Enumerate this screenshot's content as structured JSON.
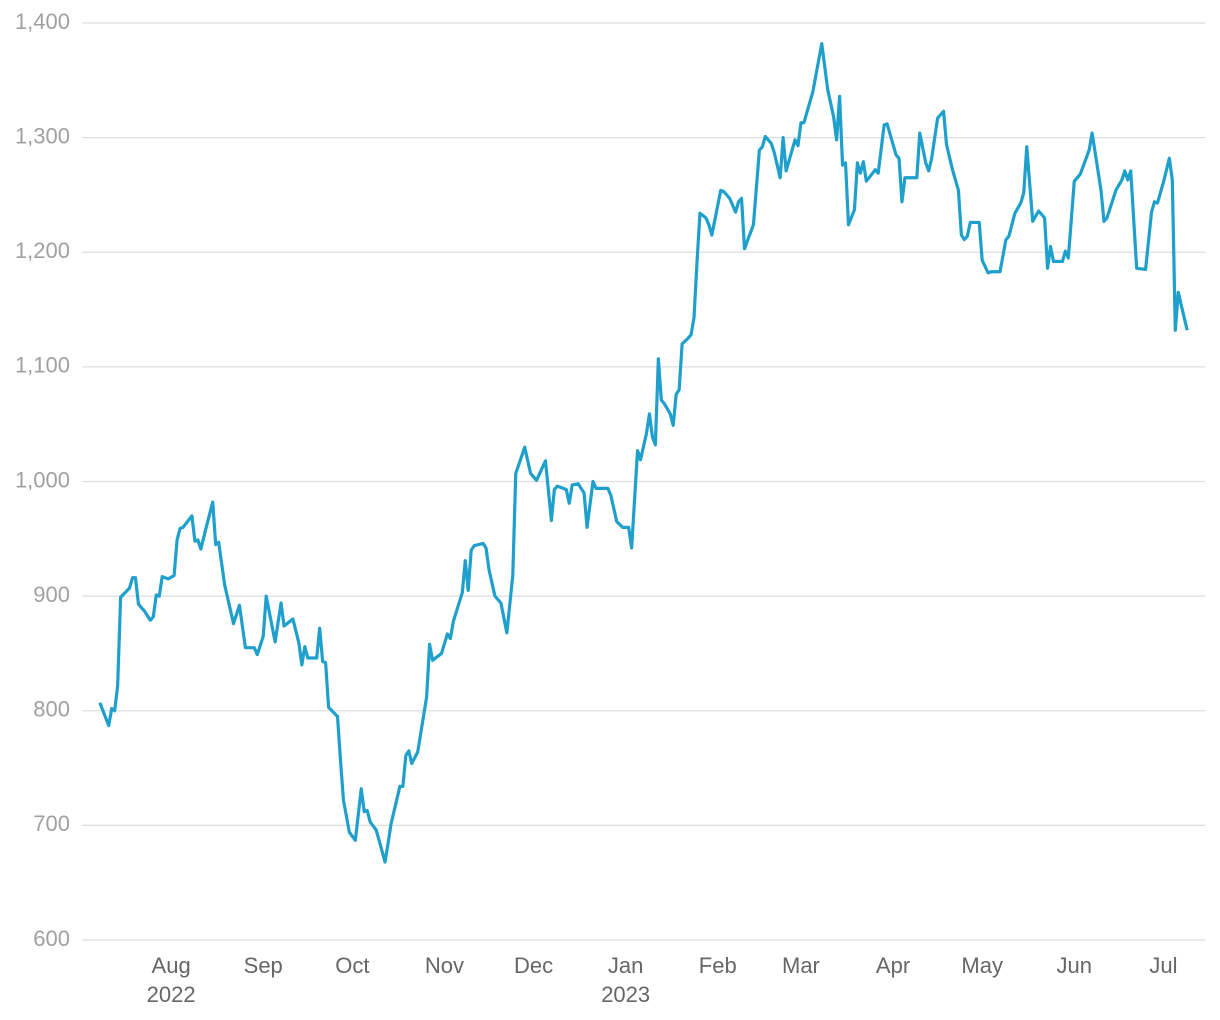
{
  "chart_data": {
    "type": "line",
    "x": [
      "2022-07-08",
      "2022-07-11",
      "2022-07-12",
      "2022-07-13",
      "2022-07-14",
      "2022-07-15",
      "2022-07-18",
      "2022-07-19",
      "2022-07-20",
      "2022-07-21",
      "2022-07-23",
      "2022-07-25",
      "2022-07-26",
      "2022-07-27",
      "2022-07-28",
      "2022-07-29",
      "2022-07-31",
      "2022-08-02",
      "2022-08-03",
      "2022-08-04",
      "2022-08-05",
      "2022-08-08",
      "2022-08-09",
      "2022-08-10",
      "2022-08-11",
      "2022-08-13",
      "2022-08-15",
      "2022-08-16",
      "2022-08-17",
      "2022-08-19",
      "2022-08-22",
      "2022-08-24",
      "2022-08-26",
      "2022-08-29",
      "2022-08-30",
      "2022-09-01",
      "2022-09-02",
      "2022-09-05",
      "2022-09-07",
      "2022-09-08",
      "2022-09-11",
      "2022-09-13",
      "2022-09-14",
      "2022-09-15",
      "2022-09-16",
      "2022-09-19",
      "2022-09-20",
      "2022-09-21",
      "2022-09-22",
      "2022-09-23",
      "2022-09-26",
      "2022-09-27",
      "2022-09-28",
      "2022-09-30",
      "2022-10-02",
      "2022-10-04",
      "2022-10-05",
      "2022-10-06",
      "2022-10-07",
      "2022-10-09",
      "2022-10-10",
      "2022-10-12",
      "2022-10-13",
      "2022-10-14",
      "2022-10-17",
      "2022-10-18",
      "2022-10-19",
      "2022-10-20",
      "2022-10-21",
      "2022-10-23",
      "2022-10-26",
      "2022-10-27",
      "2022-10-28",
      "2022-10-31",
      "2022-11-02",
      "2022-11-03",
      "2022-11-04",
      "2022-11-07",
      "2022-11-08",
      "2022-11-09",
      "2022-11-10",
      "2022-11-11",
      "2022-11-14",
      "2022-11-15",
      "2022-11-16",
      "2022-11-18",
      "2022-11-20",
      "2022-11-22",
      "2022-11-24",
      "2022-11-25",
      "2022-11-27",
      "2022-11-28",
      "2022-11-30",
      "2022-12-02",
      "2022-12-05",
      "2022-12-07",
      "2022-12-08",
      "2022-12-09",
      "2022-12-12",
      "2022-12-13",
      "2022-12-14",
      "2022-12-16",
      "2022-12-18",
      "2022-12-19",
      "2022-12-21",
      "2022-12-22",
      "2022-12-26",
      "2022-12-27",
      "2022-12-29",
      "2022-12-31",
      "2023-01-02",
      "2023-01-03",
      "2023-01-05",
      "2023-01-06",
      "2023-01-08",
      "2023-01-09",
      "2023-01-10",
      "2023-01-11",
      "2023-01-12",
      "2023-01-13",
      "2023-01-14",
      "2023-01-16",
      "2023-01-17",
      "2023-01-18",
      "2023-01-19",
      "2023-01-20",
      "2023-01-22",
      "2023-01-23",
      "2023-01-24",
      "2023-01-25",
      "2023-01-26",
      "2023-01-28",
      "2023-01-29",
      "2023-01-30",
      "2023-02-02",
      "2023-02-03",
      "2023-02-05",
      "2023-02-07",
      "2023-02-08",
      "2023-02-09",
      "2023-02-10",
      "2023-02-13",
      "2023-02-15",
      "2023-02-16",
      "2023-02-17",
      "2023-02-19",
      "2023-02-20",
      "2023-02-22",
      "2023-02-23",
      "2023-02-24",
      "2023-02-27",
      "2023-02-28",
      "2023-03-01",
      "2023-03-02",
      "2023-03-05",
      "2023-03-08",
      "2023-03-10",
      "2023-03-12",
      "2023-03-13",
      "2023-03-14",
      "2023-03-15",
      "2023-03-16",
      "2023-03-17",
      "2023-03-19",
      "2023-03-20",
      "2023-03-21",
      "2023-03-22",
      "2023-03-23",
      "2023-03-26",
      "2023-03-27",
      "2023-03-29",
      "2023-03-30",
      "2023-04-02",
      "2023-04-03",
      "2023-04-04",
      "2023-04-05",
      "2023-04-09",
      "2023-04-10",
      "2023-04-12",
      "2023-04-13",
      "2023-04-14",
      "2023-04-16",
      "2023-04-18",
      "2023-04-19",
      "2023-04-21",
      "2023-04-23",
      "2023-04-24",
      "2023-04-25",
      "2023-04-26",
      "2023-04-27",
      "2023-04-30",
      "2023-05-01",
      "2023-05-03",
      "2023-05-04",
      "2023-05-07",
      "2023-05-09",
      "2023-05-10",
      "2023-05-12",
      "2023-05-14",
      "2023-05-15",
      "2023-05-16",
      "2023-05-18",
      "2023-05-20",
      "2023-05-22",
      "2023-05-23",
      "2023-05-24",
      "2023-05-25",
      "2023-05-28",
      "2023-05-29",
      "2023-05-30",
      "2023-06-01",
      "2023-06-03",
      "2023-06-04",
      "2023-06-06",
      "2023-06-07",
      "2023-06-10",
      "2023-06-11",
      "2023-06-12",
      "2023-06-15",
      "2023-06-17",
      "2023-06-18",
      "2023-06-19",
      "2023-06-20",
      "2023-06-22",
      "2023-06-25",
      "2023-06-27",
      "2023-06-28",
      "2023-06-29",
      "2023-07-01",
      "2023-07-03",
      "2023-07-04",
      "2023-07-05",
      "2023-07-06",
      "2023-07-09"
    ],
    "values": [
      807,
      787,
      802,
      800,
      822,
      899,
      907,
      916,
      916,
      893,
      887,
      879,
      882,
      901,
      900,
      917,
      915,
      918,
      949,
      959,
      960,
      970,
      948,
      949,
      941,
      962,
      982,
      945,
      947,
      910,
      876,
      892,
      855,
      855,
      849,
      865,
      900,
      860,
      894,
      874,
      880,
      859,
      840,
      856,
      846,
      846,
      872,
      843,
      842,
      803,
      795,
      757,
      722,
      694,
      687,
      732,
      712,
      713,
      703,
      696,
      687,
      668,
      684,
      701,
      734,
      734,
      761,
      765,
      754,
      764,
      812,
      858,
      844,
      850,
      867,
      863,
      878,
      903,
      931,
      905,
      940,
      944,
      946,
      942,
      923,
      900,
      894,
      868,
      918,
      1007,
      1022,
      1030,
      1007,
      1001,
      1018,
      966,
      993,
      996,
      993,
      981,
      997,
      998,
      990,
      960,
      1000,
      994,
      994,
      988,
      965,
      960,
      960,
      942,
      1027,
      1019,
      1042,
      1059,
      1039,
      1032,
      1107,
      1071,
      1068,
      1059,
      1049,
      1076,
      1080,
      1120,
      1125,
      1128,
      1143,
      1191,
      1234,
      1230,
      1224,
      1215,
      1254,
      1253,
      1247,
      1235,
      1244,
      1247,
      1203,
      1224,
      1289,
      1292,
      1301,
      1295,
      1287,
      1265,
      1300,
      1271,
      1298,
      1293,
      1313,
      1313,
      1340,
      1382,
      1342,
      1318,
      1298,
      1336,
      1276,
      1278,
      1224,
      1237,
      1278,
      1269,
      1279,
      1262,
      1272,
      1269,
      1311,
      1312,
      1285,
      1282,
      1244,
      1265,
      1265,
      1304,
      1278,
      1271,
      1282,
      1317,
      1323,
      1294,
      1272,
      1254,
      1215,
      1211,
      1214,
      1226,
      1226,
      1193,
      1182,
      1183,
      1183,
      1211,
      1214,
      1234,
      1243,
      1252,
      1292,
      1227,
      1236,
      1230,
      1186,
      1205,
      1192,
      1192,
      1201,
      1195,
      1262,
      1268,
      1275,
      1289,
      1304,
      1254,
      1227,
      1230,
      1254,
      1263,
      1271,
      1263,
      1271,
      1186,
      1185,
      1235,
      1244,
      1243,
      1261,
      1282,
      1263,
      1132,
      1165,
      1132
    ],
    "color": "#1f9fcc",
    "xlim": [
      "2022-07-02",
      "2023-07-15"
    ],
    "xticks": [
      {
        "value": "2022-08-01",
        "label": "Aug"
      },
      {
        "value": "2022-09-01",
        "label": "Sep"
      },
      {
        "value": "2022-10-01",
        "label": "Oct"
      },
      {
        "value": "2022-11-01",
        "label": "Nov"
      },
      {
        "value": "2022-12-01",
        "label": "Dec"
      },
      {
        "value": "2023-01-01",
        "label": "Jan"
      },
      {
        "value": "2023-02-01",
        "label": "Feb"
      },
      {
        "value": "2023-03-01",
        "label": "Mar"
      },
      {
        "value": "2023-04-01",
        "label": "Apr"
      },
      {
        "value": "2023-05-01",
        "label": "May"
      },
      {
        "value": "2023-06-01",
        "label": "Jun"
      },
      {
        "value": "2023-07-01",
        "label": "Jul"
      }
    ],
    "xtick_years": [
      {
        "value": "2022-08-01",
        "label": "2022"
      },
      {
        "value": "2023-01-01",
        "label": "2023"
      }
    ],
    "ylim": [
      600,
      1400
    ],
    "yticks": [
      600,
      700,
      800,
      900,
      {
        "value": 1000,
        "label": "1,000"
      },
      {
        "value": 1100,
        "label": "1,100"
      },
      {
        "value": 1200,
        "label": "1,200"
      },
      {
        "value": 1300,
        "label": "1,300"
      },
      {
        "value": 1400,
        "label": "1,400"
      }
    ],
    "grid": true
  }
}
